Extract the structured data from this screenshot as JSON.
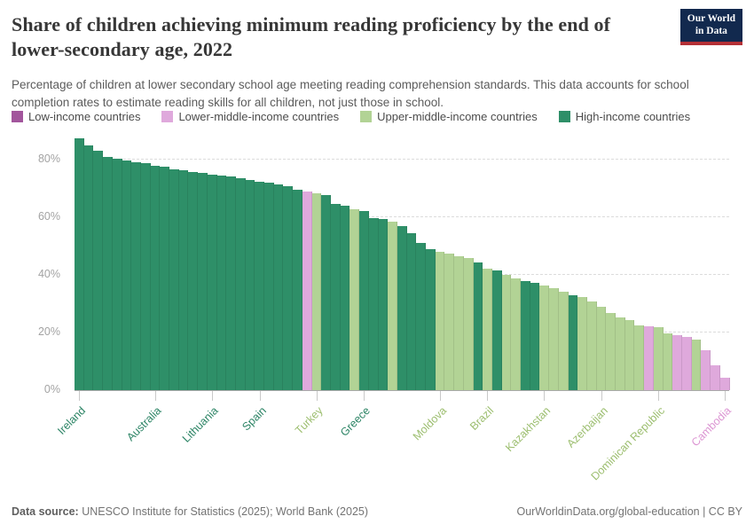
{
  "header": {
    "title": "Share of children achieving minimum reading proficiency by the end of lower-secondary age, 2022",
    "subtitle": "Percentage of children at lower secondary school age meeting reading comprehension standards. This data accounts for school completion rates to estimate reading skills for all children, not just those in school.",
    "logo_line1": "Our World",
    "logo_line2": "in Data"
  },
  "legend": {
    "items": [
      {
        "label": "Low-income countries",
        "group": "lic",
        "color": "#a2559c"
      },
      {
        "label": "Lower-middle-income countries",
        "group": "lmc",
        "color": "#dfa9dc"
      },
      {
        "label": "Upper-middle-income countries",
        "group": "umc",
        "color": "#b2d395"
      },
      {
        "label": "High-income countries",
        "group": "hic",
        "color": "#2e8f68"
      }
    ]
  },
  "chart_data": {
    "type": "bar",
    "title": "Share of children achieving minimum reading proficiency by the end of lower-secondary age, 2022",
    "ylabel": "",
    "xlabel": "",
    "unit": "%",
    "ylim": [
      0,
      88
    ],
    "yticks": [
      0,
      20,
      40,
      60,
      80
    ],
    "ytick_labels": [
      "0%",
      "20%",
      "40%",
      "60%",
      "80%"
    ],
    "grid": "horizontal-dashed",
    "legend_position": "top",
    "group_colors": {
      "hic": "#2e8f68",
      "umc": "#b2d395",
      "lmc": "#dfa9dc",
      "lic": "#a2559c"
    },
    "label_colors": {
      "hic": "#2c8465",
      "umc": "#9cbe6f",
      "lmc": "#dc96d3",
      "lic": "#a2559c"
    },
    "bars": [
      [
        87.4,
        "hic"
      ],
      [
        84.8,
        "hic"
      ],
      [
        83.1,
        "hic"
      ],
      [
        81.0,
        "hic"
      ],
      [
        80.3,
        "hic"
      ],
      [
        79.7,
        "hic"
      ],
      [
        79.0,
        "hic"
      ],
      [
        78.7,
        "hic"
      ],
      [
        77.9,
        "hic"
      ],
      [
        77.4,
        "hic"
      ],
      [
        76.6,
        "hic"
      ],
      [
        76.2,
        "hic"
      ],
      [
        75.8,
        "hic"
      ],
      [
        75.3,
        "hic"
      ],
      [
        74.7,
        "hic"
      ],
      [
        74.4,
        "hic"
      ],
      [
        74.1,
        "hic"
      ],
      [
        73.4,
        "hic"
      ],
      [
        73.0,
        "hic"
      ],
      [
        72.3,
        "hic"
      ],
      [
        72.0,
        "hic"
      ],
      [
        71.5,
        "hic"
      ],
      [
        70.8,
        "hic"
      ],
      [
        69.6,
        "hic"
      ],
      [
        69.0,
        "lmc"
      ],
      [
        68.3,
        "umc"
      ],
      [
        67.8,
        "hic"
      ],
      [
        64.6,
        "hic"
      ],
      [
        64.0,
        "hic"
      ],
      [
        62.9,
        "umc"
      ],
      [
        62.2,
        "hic"
      ],
      [
        59.8,
        "hic"
      ],
      [
        59.5,
        "hic"
      ],
      [
        58.6,
        "umc"
      ],
      [
        56.9,
        "hic"
      ],
      [
        54.4,
        "hic"
      ],
      [
        51.1,
        "hic"
      ],
      [
        48.8,
        "hic"
      ],
      [
        48.0,
        "umc"
      ],
      [
        47.3,
        "umc"
      ],
      [
        46.5,
        "umc"
      ],
      [
        45.9,
        "umc"
      ],
      [
        44.2,
        "hic"
      ],
      [
        42.2,
        "umc"
      ],
      [
        41.5,
        "hic"
      ],
      [
        40.0,
        "umc"
      ],
      [
        38.8,
        "umc"
      ],
      [
        38.0,
        "hic"
      ],
      [
        37.2,
        "hic"
      ],
      [
        36.2,
        "umc"
      ],
      [
        35.5,
        "umc"
      ],
      [
        34.3,
        "umc"
      ],
      [
        32.8,
        "hic"
      ],
      [
        32.3,
        "umc"
      ],
      [
        30.9,
        "umc"
      ],
      [
        29.0,
        "umc"
      ],
      [
        26.7,
        "umc"
      ],
      [
        25.2,
        "umc"
      ],
      [
        24.4,
        "umc"
      ],
      [
        22.6,
        "umc"
      ],
      [
        22.1,
        "lmc"
      ],
      [
        21.8,
        "umc"
      ],
      [
        19.6,
        "umc"
      ],
      [
        19.0,
        "lmc"
      ],
      [
        18.6,
        "lmc"
      ],
      [
        17.6,
        "umc"
      ],
      [
        13.8,
        "lmc"
      ],
      [
        8.7,
        "lmc"
      ],
      [
        4.2,
        "lmc"
      ]
    ],
    "x_labels": [
      {
        "index": 0,
        "name": "Ireland"
      },
      {
        "index": 8,
        "name": "Australia"
      },
      {
        "index": 14,
        "name": "Lithuania"
      },
      {
        "index": 19,
        "name": "Spain"
      },
      {
        "index": 25,
        "name": "Turkey"
      },
      {
        "index": 30,
        "name": "Greece"
      },
      {
        "index": 38,
        "name": "Moldova"
      },
      {
        "index": 43,
        "name": "Brazil"
      },
      {
        "index": 49,
        "name": "Kazakhstan"
      },
      {
        "index": 55,
        "name": "Azerbaijan"
      },
      {
        "index": 61,
        "name": "Dominican Republic"
      },
      {
        "index": 68,
        "name": "Cambodia"
      }
    ]
  },
  "footer": {
    "source_label": "Data source:",
    "source_text": " UNESCO Institute for Statistics (2025); World Bank (2025)",
    "credit": "OurWorldinData.org/global-education | CC BY"
  }
}
